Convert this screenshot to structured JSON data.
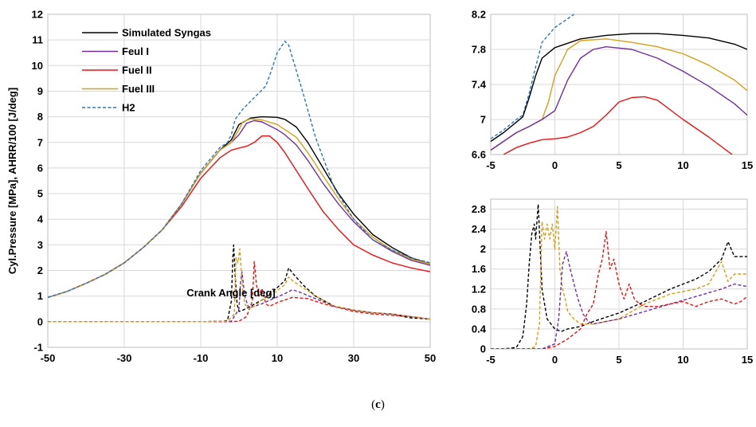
{
  "caption": {
    "open": "(",
    "letter": "c",
    "close": ")"
  },
  "colors": {
    "simulated": "#000000",
    "fuel1": "#7030A0",
    "fuel2": "#EE1111",
    "fuel3": "#D4A017",
    "h2": "#2E75B6",
    "grid": "#D9D9D9"
  },
  "chart_data": [
    {
      "type": "line",
      "xlabel": "Crank Angle [deg]",
      "ylabel": "Cyl.Pressure [MPa], AHRR/100 [J/deg]",
      "xlim": [
        -50,
        50
      ],
      "ylim": [
        -1,
        12
      ],
      "xticks": [
        -50,
        -30,
        -10,
        10,
        30,
        50
      ],
      "yticks": [
        -1,
        0,
        1,
        2,
        3,
        4,
        5,
        6,
        7,
        8,
        9,
        10,
        11,
        12
      ],
      "grid": true,
      "legend": "top-left",
      "series": [
        {
          "name": "Simulated Syngas",
          "color": "#000000",
          "dash": "solid",
          "kind": "pressure",
          "x": [
            -50,
            -45,
            -40,
            -35,
            -30,
            -25,
            -20,
            -15,
            -10,
            -5,
            -2,
            0,
            3,
            6,
            10,
            12,
            15,
            18,
            22,
            26,
            30,
            35,
            40,
            45,
            50
          ],
          "y": [
            0.95,
            1.18,
            1.5,
            1.85,
            2.3,
            2.9,
            3.6,
            4.6,
            5.8,
            6.7,
            7.1,
            7.7,
            7.95,
            8.0,
            7.98,
            7.9,
            7.6,
            7.0,
            6.0,
            5.0,
            4.2,
            3.4,
            2.9,
            2.5,
            2.25
          ]
        },
        {
          "name": "Feul I",
          "color": "#7030A0",
          "dash": "solid",
          "kind": "pressure",
          "x": [
            -50,
            -45,
            -40,
            -35,
            -30,
            -25,
            -20,
            -15,
            -10,
            -5,
            -2,
            0,
            2,
            4,
            6,
            10,
            12,
            15,
            18,
            22,
            26,
            30,
            35,
            40,
            45,
            50
          ],
          "y": [
            0.95,
            1.18,
            1.5,
            1.85,
            2.3,
            2.9,
            3.6,
            4.6,
            5.8,
            6.7,
            7.0,
            7.3,
            7.75,
            7.85,
            7.8,
            7.5,
            7.3,
            6.9,
            6.3,
            5.4,
            4.6,
            3.9,
            3.2,
            2.75,
            2.4,
            2.2
          ]
        },
        {
          "name": "Fuel II",
          "color": "#EE1111",
          "dash": "solid",
          "kind": "pressure",
          "x": [
            -50,
            -45,
            -40,
            -35,
            -30,
            -25,
            -20,
            -15,
            -10,
            -5,
            -2,
            0,
            2,
            4,
            6,
            8,
            10,
            12,
            15,
            18,
            22,
            26,
            30,
            35,
            40,
            45,
            50
          ],
          "y": [
            0.95,
            1.18,
            1.5,
            1.85,
            2.3,
            2.9,
            3.6,
            4.5,
            5.6,
            6.4,
            6.7,
            6.78,
            6.85,
            7.0,
            7.25,
            7.25,
            7.0,
            6.6,
            5.9,
            5.2,
            4.3,
            3.6,
            3.0,
            2.6,
            2.3,
            2.1,
            1.95
          ]
        },
        {
          "name": "Fuel III",
          "color": "#D4A017",
          "dash": "solid",
          "kind": "pressure",
          "x": [
            -50,
            -45,
            -40,
            -35,
            -30,
            -25,
            -20,
            -15,
            -10,
            -5,
            -2,
            0,
            1,
            3,
            6,
            10,
            12,
            15,
            18,
            22,
            26,
            30,
            35,
            40,
            45,
            50
          ],
          "y": [
            0.95,
            1.18,
            1.5,
            1.85,
            2.3,
            2.9,
            3.6,
            4.6,
            5.8,
            6.7,
            7.0,
            7.5,
            7.8,
            7.92,
            7.88,
            7.7,
            7.5,
            7.2,
            6.6,
            5.7,
            4.8,
            4.0,
            3.3,
            2.8,
            2.45,
            2.25
          ]
        },
        {
          "name": "H2",
          "color": "#2E75B6",
          "dash": "dashed",
          "kind": "pressure",
          "x": [
            -50,
            -45,
            -40,
            -35,
            -30,
            -25,
            -20,
            -15,
            -10,
            -5,
            -3,
            -2,
            -1,
            0,
            1,
            3,
            5,
            7,
            8,
            10,
            12,
            13,
            14,
            17,
            20,
            25,
            30,
            35,
            40,
            45,
            50
          ],
          "y": [
            0.95,
            1.18,
            1.5,
            1.85,
            2.3,
            2.9,
            3.6,
            4.6,
            5.9,
            6.8,
            7.0,
            7.3,
            7.9,
            8.1,
            8.3,
            8.6,
            8.9,
            9.2,
            9.6,
            10.5,
            10.95,
            10.8,
            10.3,
            8.8,
            7.2,
            5.2,
            4.0,
            3.2,
            2.8,
            2.5,
            2.3
          ]
        },
        {
          "name": "",
          "color": "#000000",
          "dash": "dashed",
          "kind": "ahrr",
          "x": [
            -50,
            -10,
            -4,
            -3,
            -2,
            -1.6,
            -1.4,
            -1,
            -0.5,
            0,
            1,
            3,
            6,
            9,
            12,
            13,
            14,
            17,
            20,
            25,
            30,
            35,
            40,
            43,
            45,
            50
          ],
          "y": [
            0,
            0,
            0.02,
            0.05,
            0.8,
            2.5,
            3.0,
            1.8,
            0.7,
            0.4,
            0.45,
            0.6,
            0.85,
            1.2,
            1.6,
            2.1,
            1.9,
            1.4,
            1.0,
            0.6,
            0.45,
            0.35,
            0.3,
            0.2,
            0.15,
            0.1
          ]
        },
        {
          "name": "",
          "color": "#7030A0",
          "dash": "dashed",
          "kind": "ahrr",
          "x": [
            -50,
            -10,
            -2,
            0,
            0.4,
            0.8,
            1.5,
            2.5,
            4,
            6,
            9,
            12,
            14,
            16,
            20,
            25,
            30,
            35,
            40,
            45,
            50
          ],
          "y": [
            0,
            0,
            0.02,
            0.5,
            1.5,
            1.95,
            1.0,
            0.55,
            0.6,
            0.7,
            0.9,
            1.1,
            1.25,
            1.15,
            0.9,
            0.6,
            0.45,
            0.35,
            0.3,
            0.2,
            0.1
          ]
        },
        {
          "name": "",
          "color": "#EE1111",
          "dash": "dashed",
          "kind": "ahrr",
          "x": [
            -50,
            -10,
            -2,
            0,
            2,
            3.5,
            4,
            4.6,
            5.2,
            6,
            7,
            8,
            10,
            14,
            18,
            22,
            26,
            30,
            35,
            40,
            45,
            50
          ],
          "y": [
            0,
            0,
            0,
            0.02,
            0.2,
            0.8,
            2.35,
            1.4,
            1.0,
            1.3,
            0.7,
            0.6,
            0.75,
            0.95,
            0.9,
            0.7,
            0.55,
            0.4,
            0.3,
            0.25,
            0.2,
            0.1
          ]
        },
        {
          "name": "",
          "color": "#D4A017",
          "dash": "dashed",
          "kind": "ahrr",
          "x": [
            -50,
            -10,
            -3,
            -1.2,
            -0.8,
            -0.3,
            0.2,
            0.6,
            1.0,
            1.5,
            2.5,
            4,
            6,
            9,
            12,
            13,
            14,
            17,
            20,
            25,
            30,
            35,
            40,
            45,
            50
          ],
          "y": [
            0,
            0,
            0.02,
            0.3,
            2.5,
            2.3,
            2.85,
            1.9,
            1.2,
            0.7,
            0.5,
            0.6,
            0.85,
            1.1,
            1.45,
            1.75,
            1.6,
            1.3,
            1.0,
            0.6,
            0.45,
            0.35,
            0.3,
            0.2,
            0.1
          ]
        }
      ]
    },
    {
      "type": "line",
      "xlim": [
        -5,
        15
      ],
      "ylim": [
        6.6,
        8.2
      ],
      "xticks": [
        -5,
        0,
        5,
        10,
        15
      ],
      "yticks": [
        6.6,
        7,
        7.4,
        7.8,
        8.2
      ],
      "ytick_labels": [
        "6.6",
        "7",
        "7.4",
        "7.8",
        "8.2"
      ],
      "grid": true,
      "series": [
        {
          "color": "#2E75B6",
          "dash": "dashed",
          "x": [
            -5,
            -4,
            -3,
            -2.5,
            -2,
            -1.5,
            -1,
            0,
            1,
            2
          ],
          "y": [
            6.78,
            6.88,
            7.0,
            7.05,
            7.3,
            7.6,
            7.88,
            8.05,
            8.15,
            8.25
          ]
        },
        {
          "color": "#000000",
          "dash": "solid",
          "x": [
            -5,
            -4,
            -3,
            -2.5,
            -2,
            -1.5,
            -1,
            0,
            2,
            4,
            6,
            8,
            10,
            12,
            14,
            15
          ],
          "y": [
            6.75,
            6.85,
            6.97,
            7.03,
            7.25,
            7.5,
            7.7,
            7.82,
            7.92,
            7.96,
            7.98,
            7.98,
            7.96,
            7.93,
            7.86,
            7.8
          ]
        },
        {
          "color": "#D4A017",
          "dash": "solid",
          "x": [
            -5,
            -4,
            -3,
            -2,
            -1,
            -0.5,
            0,
            1,
            2,
            4,
            6,
            8,
            10,
            12,
            14,
            15
          ],
          "y": [
            6.65,
            6.75,
            6.85,
            6.92,
            7.0,
            7.2,
            7.5,
            7.8,
            7.9,
            7.92,
            7.88,
            7.83,
            7.75,
            7.62,
            7.45,
            7.33
          ]
        },
        {
          "color": "#7030A0",
          "dash": "solid",
          "x": [
            -5,
            -4,
            -3,
            -2,
            -1,
            0,
            1,
            2,
            3,
            4,
            6,
            8,
            10,
            12,
            14,
            15
          ],
          "y": [
            6.65,
            6.75,
            6.85,
            6.92,
            7.0,
            7.1,
            7.45,
            7.7,
            7.8,
            7.83,
            7.8,
            7.7,
            7.55,
            7.38,
            7.18,
            7.05
          ]
        },
        {
          "color": "#EE1111",
          "dash": "solid",
          "x": [
            -4,
            -3,
            -2,
            -1,
            0,
            1,
            2,
            3,
            4,
            5,
            6,
            7,
            8,
            10,
            12,
            14
          ],
          "y": [
            6.6,
            6.68,
            6.73,
            6.77,
            6.78,
            6.8,
            6.85,
            6.92,
            7.05,
            7.2,
            7.25,
            7.26,
            7.22,
            7.0,
            6.8,
            6.58
          ]
        }
      ]
    },
    {
      "type": "line",
      "xlim": [
        -5,
        15
      ],
      "ylim": [
        0,
        3.0
      ],
      "xticks": [
        -5,
        0,
        5,
        10,
        15
      ],
      "yticks": [
        0,
        0.4,
        0.8,
        1.2,
        1.6,
        2,
        2.4,
        2.8
      ],
      "ytick_labels": [
        "0",
        "0.4",
        "0.8",
        "1.2",
        "1.6",
        "2",
        "2.4",
        "2.8"
      ],
      "grid": true,
      "series": [
        {
          "color": "#000000",
          "dash": "dashed",
          "x": [
            -5,
            -4,
            -3,
            -2.5,
            -2.2,
            -2,
            -1.8,
            -1.6,
            -1.5,
            -1.3,
            -1,
            -0.6,
            0,
            0.5,
            1,
            2,
            3,
            5,
            7,
            9,
            11,
            12,
            13,
            13.5,
            14,
            15
          ],
          "y": [
            0,
            0,
            0.03,
            0.25,
            0.9,
            1.7,
            2.3,
            2.5,
            2.2,
            2.9,
            1.2,
            0.6,
            0.4,
            0.35,
            0.4,
            0.45,
            0.55,
            0.72,
            0.95,
            1.2,
            1.4,
            1.55,
            1.8,
            2.15,
            1.85,
            1.85
          ]
        },
        {
          "color": "#D4A017",
          "dash": "dashed",
          "x": [
            -5,
            -2,
            -1.5,
            -1.2,
            -1.0,
            -0.8,
            -0.6,
            -0.4,
            -0.2,
            0,
            0.2,
            0.4,
            0.6,
            0.8,
            1.0,
            1.5,
            2,
            3,
            5,
            7,
            9,
            11,
            12,
            13,
            13.5,
            14,
            15
          ],
          "y": [
            0,
            0,
            0.05,
            0.5,
            2.55,
            2.2,
            2.5,
            2.2,
            2.5,
            2.0,
            2.85,
            1.6,
            1.2,
            1.0,
            0.75,
            0.6,
            0.5,
            0.5,
            0.6,
            0.9,
            1.1,
            1.2,
            1.3,
            1.75,
            1.35,
            1.5,
            1.5
          ]
        },
        {
          "color": "#7030A0",
          "dash": "dashed",
          "x": [
            -5,
            -1,
            0,
            0.3,
            0.6,
            0.9,
            1.2,
            1.5,
            1.8,
            2.2,
            2.6,
            3,
            5,
            7,
            9,
            11,
            13,
            14,
            15
          ],
          "y": [
            0,
            0,
            0.1,
            0.6,
            1.7,
            1.95,
            1.6,
            1.3,
            1.0,
            0.7,
            0.55,
            0.5,
            0.6,
            0.75,
            0.9,
            1.05,
            1.2,
            1.3,
            1.25
          ]
        },
        {
          "color": "#EE1111",
          "dash": "dashed",
          "x": [
            -5,
            -1,
            0,
            1,
            2,
            2.5,
            3,
            3.4,
            3.7,
            4,
            4.3,
            4.6,
            5,
            5.4,
            5.8,
            6.2,
            6.6,
            7,
            8,
            9,
            10,
            11,
            12,
            13,
            14,
            14.5,
            15
          ],
          "y": [
            0,
            0,
            0.05,
            0.2,
            0.4,
            0.7,
            0.9,
            1.5,
            1.8,
            2.35,
            1.6,
            1.8,
            1.3,
            1.0,
            1.3,
            1.0,
            0.9,
            0.85,
            0.85,
            0.9,
            0.95,
            0.85,
            0.95,
            1.0,
            0.9,
            0.95,
            1.05
          ]
        }
      ]
    }
  ]
}
